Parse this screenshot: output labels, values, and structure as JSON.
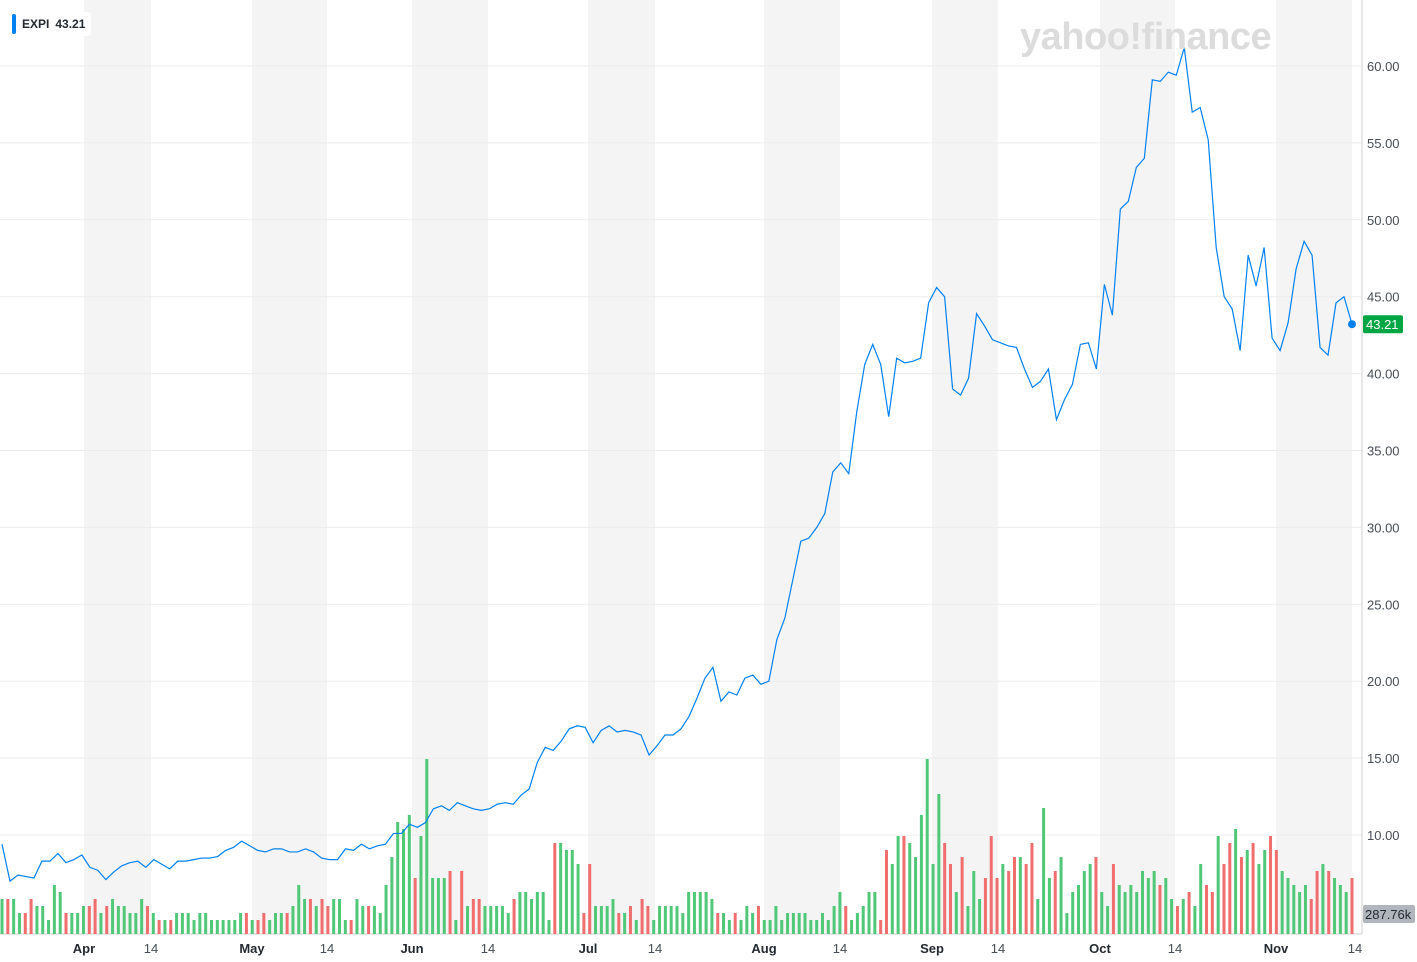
{
  "watermark": "yahoo!finance",
  "legend": {
    "symbol": "EXPI",
    "value": "43.21",
    "color": "#0081f2"
  },
  "colors": {
    "line": "#0081f2",
    "up_volume": "#50c878",
    "down_volume": "#f06e6e",
    "price_badge": "#00a644",
    "volume_badge": "#b0b6bb",
    "band": "#f4f4f4",
    "grid": "#ececec"
  },
  "chart_data": {
    "type": "line",
    "ylim": [
      5,
      64
    ],
    "y_ticks": [
      "10.00",
      "15.00",
      "20.00",
      "25.00",
      "30.00",
      "35.00",
      "40.00",
      "45.00",
      "50.00",
      "55.00",
      "60.00"
    ],
    "x_ticks": [
      {
        "label": "Apr",
        "bold": true
      },
      {
        "label": "14",
        "bold": false
      },
      {
        "label": "May",
        "bold": true
      },
      {
        "label": "14",
        "bold": false
      },
      {
        "label": "Jun",
        "bold": true
      },
      {
        "label": "14",
        "bold": false
      },
      {
        "label": "Jul",
        "bold": true
      },
      {
        "label": "14",
        "bold": false
      },
      {
        "label": "Aug",
        "bold": true
      },
      {
        "label": "14",
        "bold": false
      },
      {
        "label": "Sep",
        "bold": true
      },
      {
        "label": "14",
        "bold": false
      },
      {
        "label": "Oct",
        "bold": true
      },
      {
        "label": "14",
        "bold": false
      },
      {
        "label": "Nov",
        "bold": true
      },
      {
        "label": "14",
        "bold": false
      }
    ],
    "series": [
      {
        "name": "EXPI",
        "values": [
          9.4,
          7.0,
          7.4,
          7.3,
          7.2,
          8.3,
          8.3,
          8.8,
          8.2,
          8.4,
          8.7,
          7.9,
          7.7,
          7.1,
          7.6,
          8.0,
          8.2,
          8.3,
          7.9,
          8.4,
          8.1,
          7.8,
          8.3,
          8.3,
          8.4,
          8.5,
          8.5,
          8.6,
          9.0,
          9.2,
          9.6,
          9.3,
          9.0,
          8.9,
          9.1,
          9.1,
          8.9,
          8.9,
          9.1,
          8.9,
          8.5,
          8.4,
          8.4,
          9.1,
          9.0,
          9.4,
          9.1,
          9.3,
          9.4,
          10.1,
          10.1,
          10.7,
          10.5,
          10.8,
          11.7,
          11.9,
          11.6,
          12.1,
          11.9,
          11.7,
          11.6,
          11.7,
          12.0,
          12.1,
          12.0,
          12.6,
          13.0,
          14.7,
          15.7,
          15.5,
          16.1,
          16.9,
          17.1,
          17.0,
          16.0,
          16.8,
          17.1,
          16.7,
          16.8,
          16.7,
          16.5,
          15.2,
          15.8,
          16.5,
          16.5,
          16.9,
          17.7,
          18.9,
          20.2,
          20.9,
          18.7,
          19.3,
          19.1,
          20.2,
          20.4,
          19.8,
          20.0,
          22.7,
          24.1,
          26.6,
          29.1,
          29.3,
          30.0,
          30.9,
          33.6,
          34.2,
          33.5,
          37.5,
          40.6,
          41.9,
          40.6,
          37.2,
          41.0,
          40.7,
          40.8,
          41.0,
          44.6,
          45.6,
          45.0,
          39.0,
          38.6,
          39.7,
          43.9,
          43.1,
          42.2,
          42.0,
          41.8,
          41.7,
          40.3,
          39.1,
          39.5,
          40.3,
          37.0,
          38.3,
          39.3,
          41.9,
          42.0,
          40.3,
          45.8,
          43.8,
          50.7,
          51.2,
          53.4,
          54.0,
          59.1,
          59.0,
          59.6,
          59.4,
          61.2,
          57.0,
          57.3,
          55.2,
          48.2,
          45.0,
          44.2,
          41.5,
          47.7,
          45.7,
          48.2,
          42.3,
          41.5,
          43.3,
          46.8,
          48.6,
          47.7,
          41.7,
          41.2,
          44.6,
          45.0,
          43.21
        ]
      },
      {
        "name": "Volume",
        "values": [
          0.05,
          0.05,
          0.05,
          0.03,
          0.03,
          0.05,
          0.04,
          0.04,
          0.02,
          0.07,
          0.06,
          0.03,
          0.03,
          0.03,
          0.04,
          0.04,
          0.05,
          0.03,
          0.04,
          0.05,
          0.04,
          0.04,
          0.03,
          0.03,
          0.05,
          0.04,
          0.03,
          0.02,
          0.02,
          0.02,
          0.03,
          0.03,
          0.03,
          0.02,
          0.03,
          0.03,
          0.02,
          0.02,
          0.02,
          0.02,
          0.02,
          0.03,
          0.03,
          0.02,
          0.02,
          0.03,
          0.02,
          0.03,
          0.03,
          0.03,
          0.04,
          0.07,
          0.05,
          0.05,
          0.04,
          0.05,
          0.04,
          0.05,
          0.05,
          0.02,
          0.02,
          0.05,
          0.04,
          0.04,
          0.04,
          0.03,
          0.07,
          0.11,
          0.16,
          0.15,
          0.17,
          0.08,
          0.14,
          0.25,
          0.08,
          0.08,
          0.08,
          0.09,
          0.02,
          0.09,
          0.04,
          0.05,
          0.05,
          0.04,
          0.04,
          0.04,
          0.04,
          0.03,
          0.05,
          0.06,
          0.06,
          0.05,
          0.06,
          0.06,
          0.02,
          0.13,
          0.13,
          0.12,
          0.12,
          0.1,
          0.03,
          0.1,
          0.04,
          0.04,
          0.04,
          0.05,
          0.03,
          0.03,
          0.04,
          0.02,
          0.05,
          0.04,
          0.02,
          0.04,
          0.04,
          0.04,
          0.04,
          0.03,
          0.06,
          0.06,
          0.06,
          0.06,
          0.05,
          0.03,
          0.03,
          0.02,
          0.03,
          0.02,
          0.04,
          0.03,
          0.04,
          0.02,
          0.02,
          0.04,
          0.02,
          0.03,
          0.03,
          0.03,
          0.03,
          0.02,
          0.02,
          0.03,
          0.02,
          0.04,
          0.06,
          0.04,
          0.02,
          0.03,
          0.04,
          0.06,
          0.06,
          0.02,
          0.12,
          0.1,
          0.14,
          0.14,
          0.13,
          0.11,
          0.17,
          0.25,
          0.1,
          0.2,
          0.13,
          0.1,
          0.06,
          0.11,
          0.04,
          0.09,
          0.05,
          0.08,
          0.14,
          0.08,
          0.1,
          0.09,
          0.11,
          0.11,
          0.1,
          0.13,
          0.05,
          0.18,
          0.08,
          0.09,
          0.11,
          0.03,
          0.06,
          0.07,
          0.09,
          0.1,
          0.11,
          0.06,
          0.04,
          0.1,
          0.07,
          0.06,
          0.07,
          0.06,
          0.09,
          0.08,
          0.09,
          0.07,
          0.08,
          0.05,
          0.04,
          0.05,
          0.06,
          0.04,
          0.1,
          0.07,
          0.06,
          0.14,
          0.1,
          0.13,
          0.15,
          0.11,
          0.12,
          0.13,
          0.1,
          0.12,
          0.14,
          0.12,
          0.09,
          0.08,
          0.07,
          0.06,
          0.07,
          0.05,
          0.09,
          0.1,
          0.09,
          0.08,
          0.07,
          0.06,
          0.08
        ]
      }
    ],
    "last_price": "43.21",
    "volume_label": "287.76k",
    "grid": true
  }
}
